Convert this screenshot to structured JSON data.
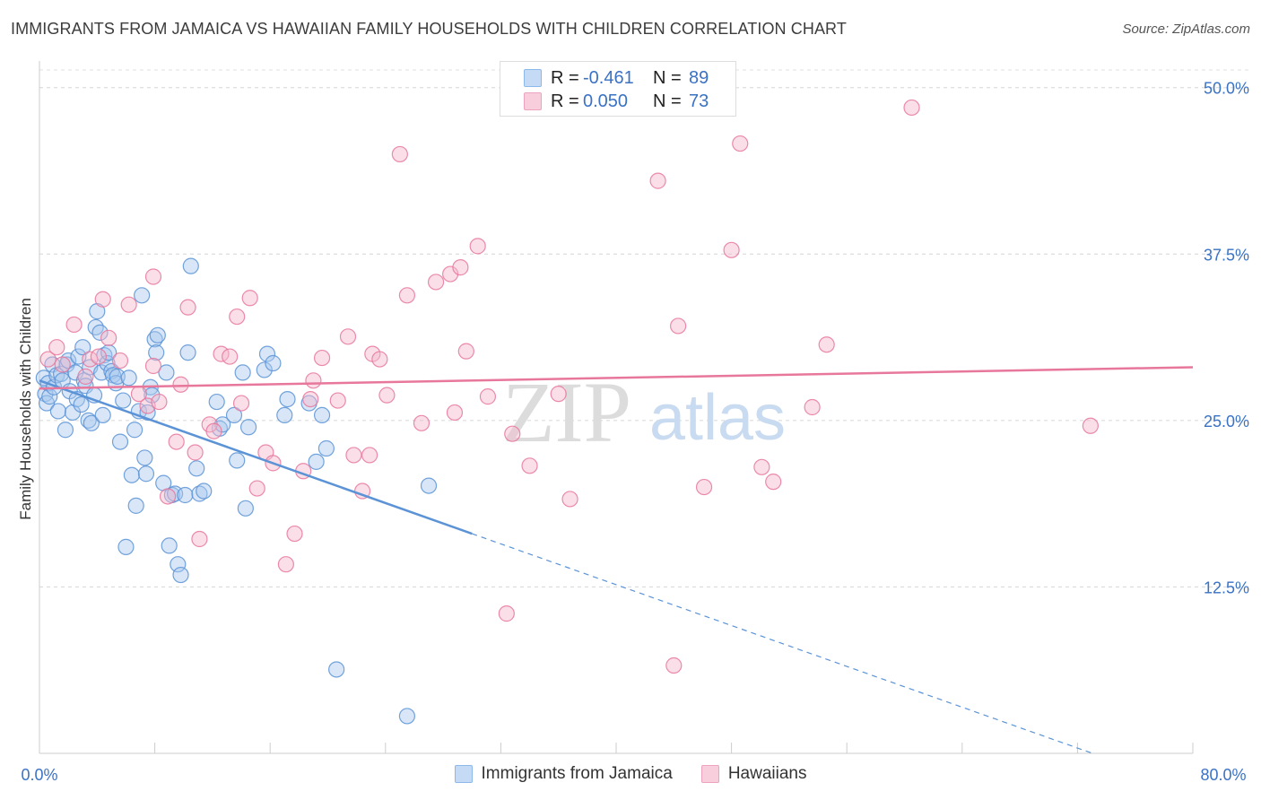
{
  "title": "IMMIGRANTS FROM JAMAICA VS HAWAIIAN FAMILY HOUSEHOLDS WITH CHILDREN CORRELATION CHART",
  "source": "Source: ZipAtlas.com",
  "watermark": {
    "zip": "ZIP",
    "atlas": "atlas"
  },
  "legend": {
    "rows": [
      {
        "r_label": "R =",
        "r_value": "-0.461",
        "n_label": "N =",
        "n_value": "89",
        "color": "#8db8ea",
        "fill": "#c5dbf5"
      },
      {
        "r_label": "R =",
        "r_value": "0.050",
        "n_label": "N =",
        "n_value": "73",
        "color": "#eda3bf",
        "fill": "#f8cedd"
      }
    ]
  },
  "bottom_legend": [
    "Immigrants from Jamaica",
    "Hawaiians"
  ],
  "chart_data": {
    "type": "scatter",
    "ylabel": "Family Households with Children",
    "xlim": [
      0,
      80
    ],
    "ylim": [
      0,
      52
    ],
    "x_tick_labels": [
      "0.0%",
      "80.0%"
    ],
    "y_ticks": [
      12.5,
      25.0,
      37.5,
      50.0
    ],
    "y_tick_labels": [
      "12.5%",
      "25.0%",
      "37.5%",
      "50.0%"
    ],
    "grid": true,
    "series": [
      {
        "name": "Immigrants from Jamaica",
        "color": "#5b93d6",
        "fill": "#a9c8ee",
        "trend": {
          "x0": 0,
          "y0": 28.0,
          "x1": 30,
          "y1": 16.5,
          "dash_to_x": 80,
          "dash_to_y": -2.7
        },
        "points": [
          [
            0.3,
            28.2
          ],
          [
            0.4,
            27.0
          ],
          [
            0.5,
            26.3
          ],
          [
            0.6,
            27.8
          ],
          [
            0.7,
            26.8
          ],
          [
            0.9,
            29.2
          ],
          [
            1.0,
            27.5
          ],
          [
            1.2,
            28.4
          ],
          [
            1.3,
            25.7
          ],
          [
            1.5,
            28.5
          ],
          [
            1.6,
            28.0
          ],
          [
            1.8,
            24.3
          ],
          [
            1.9,
            29.2
          ],
          [
            2.0,
            29.5
          ],
          [
            2.1,
            27.2
          ],
          [
            2.3,
            25.6
          ],
          [
            2.5,
            28.6
          ],
          [
            2.6,
            26.6
          ],
          [
            2.7,
            29.8
          ],
          [
            2.9,
            26.2
          ],
          [
            3.0,
            30.5
          ],
          [
            3.1,
            28.0
          ],
          [
            3.2,
            27.6
          ],
          [
            3.4,
            25.0
          ],
          [
            3.5,
            29.0
          ],
          [
            3.6,
            24.8
          ],
          [
            3.8,
            26.9
          ],
          [
            3.9,
            32.0
          ],
          [
            4.0,
            33.2
          ],
          [
            4.2,
            31.6
          ],
          [
            4.3,
            28.6
          ],
          [
            4.4,
            25.4
          ],
          [
            4.5,
            29.9
          ],
          [
            4.7,
            29.3
          ],
          [
            4.8,
            30.1
          ],
          [
            5.0,
            28.7
          ],
          [
            5.1,
            28.4
          ],
          [
            5.3,
            27.8
          ],
          [
            5.4,
            28.3
          ],
          [
            5.6,
            23.4
          ],
          [
            5.8,
            26.5
          ],
          [
            6.0,
            15.5
          ],
          [
            6.2,
            28.2
          ],
          [
            6.4,
            20.9
          ],
          [
            6.6,
            24.3
          ],
          [
            6.7,
            18.6
          ],
          [
            6.9,
            25.7
          ],
          [
            7.1,
            34.4
          ],
          [
            7.3,
            22.2
          ],
          [
            7.5,
            25.6
          ],
          [
            7.7,
            27.5
          ],
          [
            7.8,
            26.9
          ],
          [
            8.0,
            31.1
          ],
          [
            8.1,
            30.1
          ],
          [
            8.2,
            31.4
          ],
          [
            8.6,
            20.3
          ],
          [
            8.8,
            28.6
          ],
          [
            9.0,
            15.6
          ],
          [
            9.2,
            19.4
          ],
          [
            9.4,
            19.5
          ],
          [
            9.6,
            14.2
          ],
          [
            9.8,
            13.4
          ],
          [
            10.1,
            19.4
          ],
          [
            10.3,
            30.1
          ],
          [
            10.5,
            36.6
          ],
          [
            10.9,
            21.4
          ],
          [
            11.1,
            19.5
          ],
          [
            11.4,
            19.7
          ],
          [
            12.3,
            26.4
          ],
          [
            12.5,
            24.4
          ],
          [
            12.7,
            24.7
          ],
          [
            13.5,
            25.4
          ],
          [
            13.7,
            22.0
          ],
          [
            14.1,
            28.6
          ],
          [
            14.3,
            18.4
          ],
          [
            14.5,
            24.5
          ],
          [
            15.6,
            28.8
          ],
          [
            15.8,
            30.0
          ],
          [
            16.2,
            29.3
          ],
          [
            17.0,
            25.4
          ],
          [
            17.2,
            26.6
          ],
          [
            18.7,
            26.3
          ],
          [
            19.2,
            21.9
          ],
          [
            19.6,
            25.4
          ],
          [
            19.9,
            22.9
          ],
          [
            20.6,
            6.3
          ],
          [
            25.5,
            2.8
          ],
          [
            27.0,
            20.1
          ],
          [
            7.4,
            21.0
          ]
        ]
      },
      {
        "name": "Hawaiians",
        "color": "#e8779c",
        "fill": "#f3b8cc",
        "trend": {
          "x0": 0,
          "y0": 27.4,
          "x1": 80,
          "y1": 29.0
        },
        "points": [
          [
            0.6,
            29.6
          ],
          [
            1.2,
            30.5
          ],
          [
            1.6,
            29.2
          ],
          [
            2.4,
            32.2
          ],
          [
            3.2,
            28.3
          ],
          [
            3.5,
            29.6
          ],
          [
            4.1,
            29.8
          ],
          [
            4.4,
            34.1
          ],
          [
            4.8,
            31.2
          ],
          [
            5.6,
            29.5
          ],
          [
            6.2,
            33.7
          ],
          [
            6.9,
            27.0
          ],
          [
            7.5,
            26.1
          ],
          [
            7.9,
            35.8
          ],
          [
            8.3,
            26.4
          ],
          [
            8.9,
            19.3
          ],
          [
            9.5,
            23.4
          ],
          [
            9.8,
            27.7
          ],
          [
            10.3,
            33.5
          ],
          [
            10.8,
            22.6
          ],
          [
            11.1,
            16.1
          ],
          [
            11.8,
            24.7
          ],
          [
            12.1,
            24.2
          ],
          [
            12.6,
            30.0
          ],
          [
            13.2,
            29.8
          ],
          [
            13.7,
            32.8
          ],
          [
            14.0,
            26.3
          ],
          [
            14.6,
            34.2
          ],
          [
            15.1,
            19.9
          ],
          [
            15.7,
            22.6
          ],
          [
            16.2,
            21.8
          ],
          [
            17.1,
            14.2
          ],
          [
            17.7,
            16.5
          ],
          [
            18.3,
            21.2
          ],
          [
            18.8,
            26.6
          ],
          [
            19.0,
            28.0
          ],
          [
            19.6,
            29.7
          ],
          [
            20.7,
            26.5
          ],
          [
            21.4,
            31.3
          ],
          [
            21.8,
            22.4
          ],
          [
            22.4,
            19.7
          ],
          [
            22.9,
            22.4
          ],
          [
            23.1,
            30.0
          ],
          [
            23.6,
            29.6
          ],
          [
            24.1,
            26.9
          ],
          [
            25.0,
            45.0
          ],
          [
            25.5,
            34.4
          ],
          [
            26.5,
            24.8
          ],
          [
            27.5,
            35.4
          ],
          [
            28.5,
            36.0
          ],
          [
            28.8,
            25.6
          ],
          [
            29.2,
            36.5
          ],
          [
            29.6,
            30.2
          ],
          [
            30.4,
            38.1
          ],
          [
            31.1,
            26.8
          ],
          [
            32.4,
            10.5
          ],
          [
            32.8,
            24.0
          ],
          [
            34.0,
            21.6
          ],
          [
            36.0,
            27.0
          ],
          [
            36.8,
            19.1
          ],
          [
            42.9,
            43.0
          ],
          [
            44.0,
            6.6
          ],
          [
            44.3,
            32.1
          ],
          [
            46.1,
            20.0
          ],
          [
            48.0,
            37.8
          ],
          [
            48.6,
            45.8
          ],
          [
            50.1,
            21.5
          ],
          [
            50.9,
            20.4
          ],
          [
            53.6,
            26.0
          ],
          [
            54.6,
            30.7
          ],
          [
            60.5,
            48.5
          ],
          [
            72.9,
            24.6
          ],
          [
            7.9,
            29.1
          ]
        ]
      }
    ]
  }
}
